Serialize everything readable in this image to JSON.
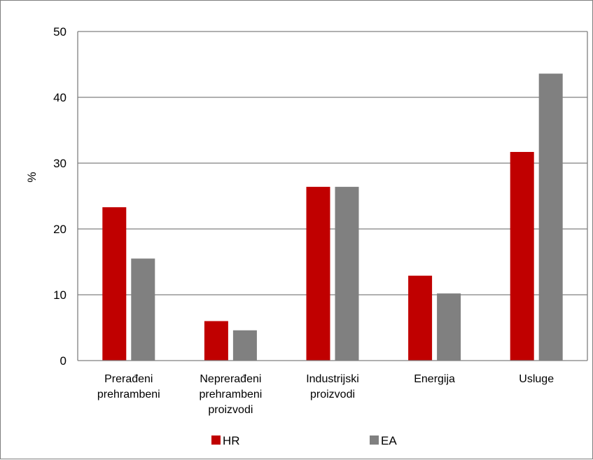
{
  "chart_data": {
    "type": "bar",
    "title": "",
    "xlabel": "",
    "ylabel": "%",
    "ylim": [
      0,
      50
    ],
    "yticks": [
      0,
      10,
      20,
      30,
      40,
      50
    ],
    "grid": true,
    "legend_position": "bottom",
    "categories": [
      [
        "Prerađeni",
        "prehrambeni"
      ],
      [
        "Neprerađeni",
        "prehrambeni",
        "proizvodi"
      ],
      [
        "Industrijski",
        "proizvodi"
      ],
      [
        "Energija"
      ],
      [
        "Usluge"
      ]
    ],
    "series": [
      {
        "name": "HR",
        "color": "#c00000",
        "values": [
          23.3,
          6.0,
          26.4,
          12.9,
          31.7
        ]
      },
      {
        "name": "EA",
        "color": "#808080",
        "values": [
          15.5,
          4.6,
          26.4,
          10.2,
          43.6
        ]
      }
    ]
  }
}
